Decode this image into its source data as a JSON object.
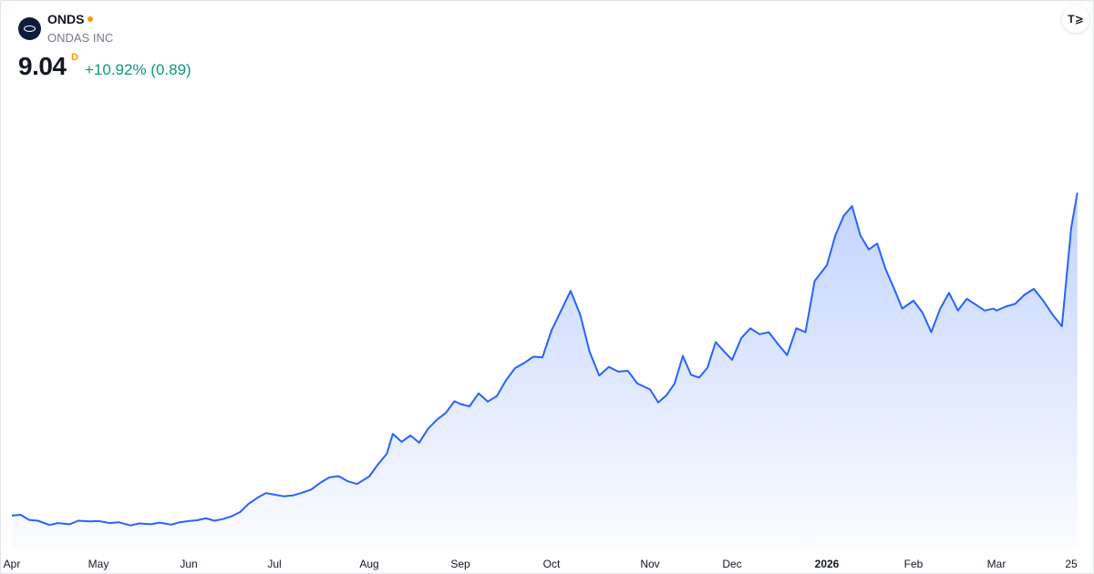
{
  "header": {
    "symbol": "ONDS",
    "company": "ONDAS INC",
    "price": "9.04",
    "interval": "D",
    "change": "+10.92% (0.89)",
    "logo_icon": "ondas-logo-icon",
    "brand_icon": "tradingview-logo-icon",
    "brand_text": "T⩾"
  },
  "colors": {
    "line": "#2962ff",
    "positive": "#089981",
    "status_dot": "#ff9800"
  },
  "chart_data": {
    "type": "area",
    "x_tick_labels": [
      "Apr",
      "May",
      "Jun",
      "Jul",
      "Aug",
      "Sep",
      "Oct",
      "Nov",
      "Dec",
      "2026",
      "Feb",
      "Mar",
      "25"
    ],
    "x_tick_major": [
      false,
      false,
      false,
      false,
      false,
      false,
      false,
      false,
      false,
      true,
      false,
      false,
      false
    ],
    "x_tick_dates": [
      "2025-04-01",
      "2025-05-01",
      "2025-06-01",
      "2025-07-01",
      "2025-08-01",
      "2025-09-01",
      "2025-10-01",
      "2025-11-01",
      "2025-12-01",
      "2026-01-01",
      "2026-02-01",
      "2026-03-01",
      "2026-03-25"
    ],
    "grid": false,
    "legend": "none",
    "y_unit": "USD",
    "ylim": [
      0.5,
      11.5
    ],
    "series": [
      {
        "points": [
          [
            "2025-04-01",
            0.85
          ],
          [
            "2025-04-04",
            0.87
          ],
          [
            "2025-04-07",
            0.74
          ],
          [
            "2025-04-10",
            0.72
          ],
          [
            "2025-04-14",
            0.61
          ],
          [
            "2025-04-17",
            0.66
          ],
          [
            "2025-04-21",
            0.63
          ],
          [
            "2025-04-24",
            0.72
          ],
          [
            "2025-04-28",
            0.7
          ],
          [
            "2025-05-01",
            0.71
          ],
          [
            "2025-05-05",
            0.66
          ],
          [
            "2025-05-08",
            0.68
          ],
          [
            "2025-05-12",
            0.6
          ],
          [
            "2025-05-15",
            0.65
          ],
          [
            "2025-05-19",
            0.63
          ],
          [
            "2025-05-22",
            0.67
          ],
          [
            "2025-05-26",
            0.62
          ],
          [
            "2025-05-29",
            0.68
          ],
          [
            "2025-06-01",
            0.71
          ],
          [
            "2025-06-04",
            0.73
          ],
          [
            "2025-06-07",
            0.78
          ],
          [
            "2025-06-10",
            0.72
          ],
          [
            "2025-06-13",
            0.76
          ],
          [
            "2025-06-16",
            0.83
          ],
          [
            "2025-06-19",
            0.94
          ],
          [
            "2025-06-22",
            1.15
          ],
          [
            "2025-06-25",
            1.3
          ],
          [
            "2025-06-28",
            1.42
          ],
          [
            "2025-07-01",
            1.38
          ],
          [
            "2025-07-04",
            1.34
          ],
          [
            "2025-07-07",
            1.36
          ],
          [
            "2025-07-10",
            1.43
          ],
          [
            "2025-07-13",
            1.51
          ],
          [
            "2025-07-16",
            1.68
          ],
          [
            "2025-07-19",
            1.82
          ],
          [
            "2025-07-22",
            1.85
          ],
          [
            "2025-07-25",
            1.72
          ],
          [
            "2025-07-28",
            1.65
          ],
          [
            "2025-08-01",
            1.84
          ],
          [
            "2025-08-04",
            2.15
          ],
          [
            "2025-08-07",
            2.42
          ],
          [
            "2025-08-09",
            2.92
          ],
          [
            "2025-08-12",
            2.72
          ],
          [
            "2025-08-15",
            2.88
          ],
          [
            "2025-08-18",
            2.7
          ],
          [
            "2025-08-21",
            3.05
          ],
          [
            "2025-08-24",
            3.28
          ],
          [
            "2025-08-27",
            3.45
          ],
          [
            "2025-08-30",
            3.75
          ],
          [
            "2025-09-01",
            3.68
          ],
          [
            "2025-09-04",
            3.62
          ],
          [
            "2025-09-07",
            3.95
          ],
          [
            "2025-09-10",
            3.74
          ],
          [
            "2025-09-13",
            3.88
          ],
          [
            "2025-09-16",
            4.28
          ],
          [
            "2025-09-19",
            4.59
          ],
          [
            "2025-09-22",
            4.72
          ],
          [
            "2025-09-25",
            4.88
          ],
          [
            "2025-09-28",
            4.86
          ],
          [
            "2025-10-01",
            5.55
          ],
          [
            "2025-10-04",
            6.05
          ],
          [
            "2025-10-07",
            6.55
          ],
          [
            "2025-10-10",
            5.95
          ],
          [
            "2025-10-13",
            5.0
          ],
          [
            "2025-10-16",
            4.4
          ],
          [
            "2025-10-19",
            4.62
          ],
          [
            "2025-10-22",
            4.5
          ],
          [
            "2025-10-25",
            4.52
          ],
          [
            "2025-10-28",
            4.2
          ],
          [
            "2025-11-01",
            4.05
          ],
          [
            "2025-11-04",
            3.72
          ],
          [
            "2025-11-07",
            3.9
          ],
          [
            "2025-11-10",
            4.2
          ],
          [
            "2025-11-13",
            4.9
          ],
          [
            "2025-11-16",
            4.42
          ],
          [
            "2025-11-19",
            4.35
          ],
          [
            "2025-11-22",
            4.6
          ],
          [
            "2025-11-25",
            5.25
          ],
          [
            "2025-11-28",
            5.02
          ],
          [
            "2025-12-01",
            4.8
          ],
          [
            "2025-12-04",
            5.35
          ],
          [
            "2025-12-07",
            5.6
          ],
          [
            "2025-12-10",
            5.45
          ],
          [
            "2025-12-13",
            5.5
          ],
          [
            "2025-12-16",
            5.2
          ],
          [
            "2025-12-19",
            4.92
          ],
          [
            "2025-12-22",
            5.6
          ],
          [
            "2025-12-25",
            5.5
          ],
          [
            "2025-12-28",
            6.8
          ],
          [
            "2026-01-01",
            7.2
          ],
          [
            "2026-01-04",
            7.95
          ],
          [
            "2026-01-07",
            8.45
          ],
          [
            "2026-01-10",
            8.7
          ],
          [
            "2026-01-13",
            7.95
          ],
          [
            "2026-01-16",
            7.6
          ],
          [
            "2026-01-19",
            7.75
          ],
          [
            "2026-01-22",
            7.1
          ],
          [
            "2026-01-25",
            6.62
          ],
          [
            "2026-01-28",
            6.1
          ],
          [
            "2026-02-01",
            6.3
          ],
          [
            "2026-02-04",
            6.0
          ],
          [
            "2026-02-07",
            5.5
          ],
          [
            "2026-02-10",
            6.1
          ],
          [
            "2026-02-13",
            6.5
          ],
          [
            "2026-02-16",
            6.05
          ],
          [
            "2026-02-19",
            6.35
          ],
          [
            "2026-02-22",
            6.2
          ],
          [
            "2026-02-25",
            6.05
          ],
          [
            "2026-02-28",
            6.1
          ],
          [
            "2026-03-01",
            6.05
          ],
          [
            "2026-03-04",
            6.15
          ],
          [
            "2026-03-07",
            6.22
          ],
          [
            "2026-03-10",
            6.45
          ],
          [
            "2026-03-13",
            6.6
          ],
          [
            "2026-03-16",
            6.3
          ],
          [
            "2026-03-19",
            5.95
          ],
          [
            "2026-03-22",
            5.65
          ],
          [
            "2026-03-25",
            8.15
          ],
          [
            "2026-03-27",
            9.04
          ]
        ]
      }
    ]
  }
}
